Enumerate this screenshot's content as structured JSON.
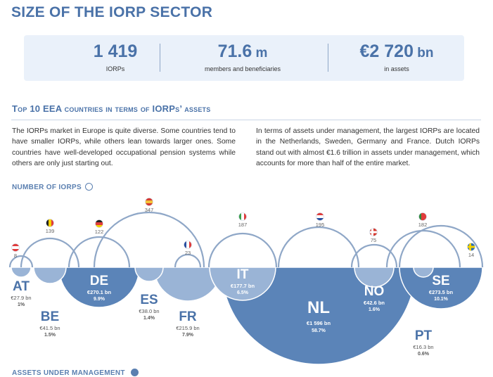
{
  "title": "SIZE OF THE IORP SECTOR",
  "stats": [
    {
      "value": "1 419",
      "unit": "",
      "label": "IORPs"
    },
    {
      "value": "71.6",
      "unit": " m",
      "label": "members and beneficiaries"
    },
    {
      "value": "€2 720",
      "unit": " bn",
      "label": "in assets"
    }
  ],
  "subtitle": "Top 10 EEA countries in terms of IORPs’ assets",
  "paragraphs": [
    "The IORPs market in Europe is quite diverse. Some countries tend to have smaller IORPs, while others lean towards larger ones. Some countries have well-developed occupational pension systems while others are only just starting out.",
    "In terms of assets under management, the largest IORPs are located in the Netherlands, Sweden, Germany and France. Dutch IORPs stand out with almost €1.6 trillion in assets under management, which accounts for more than half of the entire market."
  ],
  "legend": {
    "iorps": "NUMBER OF IORPS",
    "assets": "ASSETS UNDER MANAGEMENT"
  },
  "colors": {
    "accent": "#4a72a8",
    "ring": "#8fa7c7",
    "asset_dark": "#5b84b8",
    "asset_light": "#9ab4d6"
  },
  "chart_data": {
    "type": "bubble-arc",
    "title": "Top 10 EEA countries in terms of IORPs’ assets",
    "series": [
      {
        "name": "NUMBER OF IORPS",
        "encoding": "upper semicircle outline"
      },
      {
        "name": "ASSETS UNDER MANAGEMENT",
        "encoding": "lower filled semicircle"
      }
    ],
    "countries": [
      {
        "code": "AT",
        "flag": "flag-austria-icon",
        "iorps": 8,
        "iorps_label": "8",
        "assets_bn": 27.9,
        "assets_label": "€27.9 bn",
        "share_label": "1%"
      },
      {
        "code": "BE",
        "flag": "flag-belgium-icon",
        "iorps": 139,
        "iorps_label": "139",
        "assets_bn": 41.5,
        "assets_label": "€41.5 bn",
        "share_label": "1.5%"
      },
      {
        "code": "DE",
        "flag": "flag-germany-icon",
        "iorps": 122,
        "iorps_label": "122",
        "assets_bn": 270.1,
        "assets_label": "€270.1 bn",
        "share_label": "9.9%"
      },
      {
        "code": "ES",
        "flag": "flag-spain-icon",
        "iorps": 347,
        "iorps_label": "347",
        "assets_bn": 38.0,
        "assets_label": "€38.0 bn",
        "share_label": "1.4%"
      },
      {
        "code": "FR",
        "flag": "flag-france-icon",
        "iorps": 23,
        "iorps_label": "23",
        "assets_bn": 215.9,
        "assets_label": "€215.9 bn",
        "share_label": "7.9%"
      },
      {
        "code": "IT",
        "flag": "flag-italy-icon",
        "iorps": 187,
        "iorps_label": "187",
        "assets_bn": 177.7,
        "assets_label": "€177.7 bn",
        "share_label": "6.5%"
      },
      {
        "code": "NL",
        "flag": "flag-netherlands-icon",
        "iorps": 195,
        "iorps_label": "195",
        "assets_bn": 1596,
        "assets_label": "€1 596 bn",
        "share_label": "58.7%"
      },
      {
        "code": "NO",
        "flag": "flag-norway-icon",
        "iorps": 75,
        "iorps_label": "75",
        "assets_bn": 42.6,
        "assets_label": "€42.6 bn",
        "share_label": "1.6%"
      },
      {
        "code": "PT",
        "flag": "flag-portugal-icon",
        "iorps": 182,
        "iorps_label": "182",
        "assets_bn": 16.3,
        "assets_label": "€16.3 bn",
        "share_label": "0.6%"
      },
      {
        "code": "SE",
        "flag": "flag-sweden-icon",
        "iorps": 14,
        "iorps_label": "14",
        "assets_bn": 273.5,
        "assets_label": "€273.5 bn",
        "share_label": "10.1%"
      }
    ]
  }
}
